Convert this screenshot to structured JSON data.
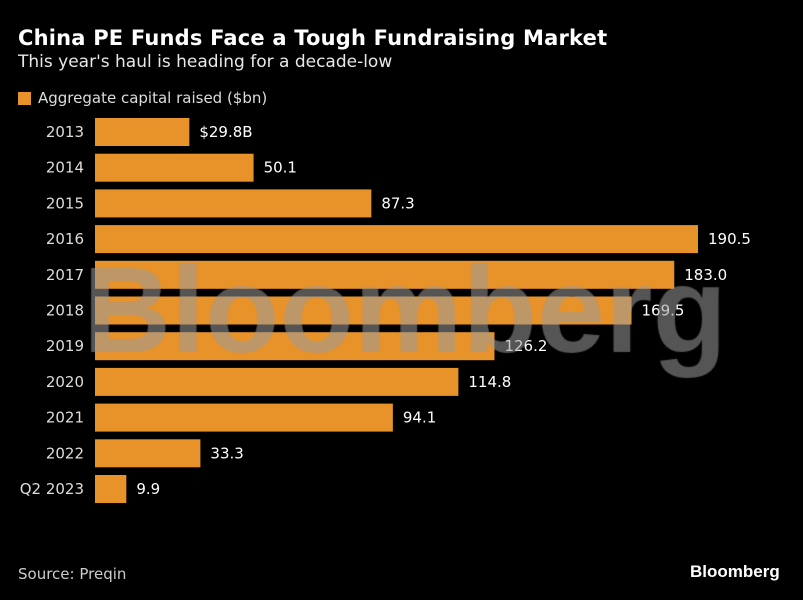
{
  "colors": {
    "bar": "#E8922A",
    "background": "#000000",
    "watermark": "#9a9a9a"
  },
  "chart_data": {
    "type": "bar",
    "orientation": "horizontal",
    "title": "China PE Funds Face a Tough Fundraising Market",
    "subtitle": "This year's haul is heading for a decade-low",
    "categories": [
      "2013",
      "2014",
      "2015",
      "2016",
      "2017",
      "2018",
      "2019",
      "2020",
      "2021",
      "2022",
      "Q2 2023"
    ],
    "series": [
      {
        "name": "Aggregate capital raised ($bn)",
        "values": [
          29.8,
          50.1,
          87.3,
          190.5,
          183.0,
          169.5,
          126.2,
          114.8,
          94.1,
          33.3,
          9.9
        ]
      }
    ],
    "data_labels": [
      "$29.8B",
      "50.1",
      "87.3",
      "190.5",
      "183.0",
      "169.5",
      "126.2",
      "114.8",
      "94.1",
      "33.3",
      "9.9"
    ],
    "legend_position": "top-left",
    "grid": false,
    "source": "Source: Preqin"
  },
  "watermark": "Bloomberg",
  "logo": "Bloomberg"
}
